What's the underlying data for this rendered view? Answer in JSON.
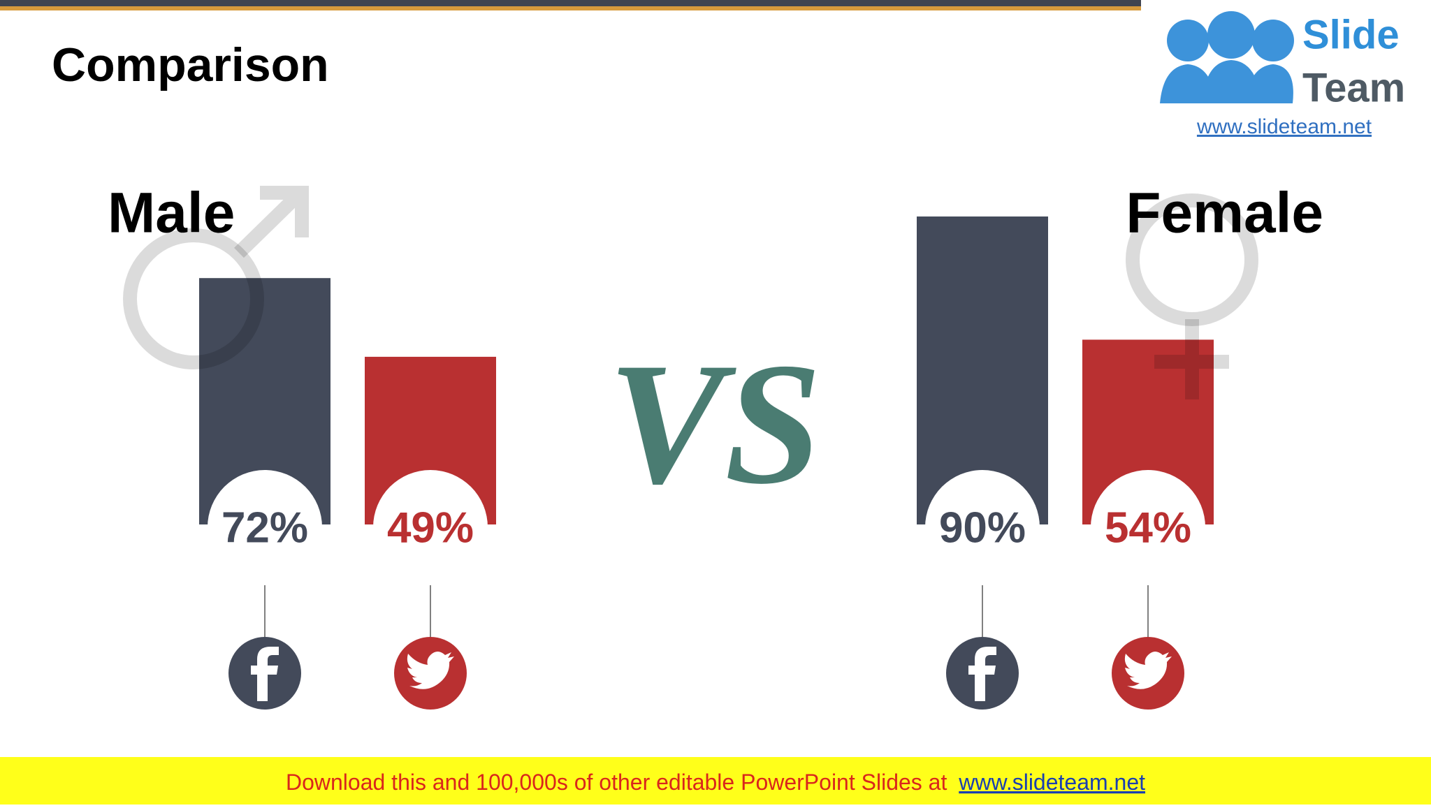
{
  "header": {
    "title": "Comparison"
  },
  "logo": {
    "line1": "Slide",
    "line2": "Team",
    "url": "www.slideteam.net"
  },
  "vs": "VS",
  "chart_data": [
    {
      "type": "bar",
      "title": "Male",
      "values": [
        72,
        49
      ],
      "value_labels": [
        "72%",
        "49%"
      ],
      "colors": [
        "#434a5a",
        "#b93031"
      ],
      "ylim": [
        0,
        100
      ]
    },
    {
      "type": "bar",
      "title": "Female",
      "values": [
        90,
        54
      ],
      "value_labels": [
        "90%",
        "54%"
      ],
      "colors": [
        "#434a5a",
        "#b93031"
      ],
      "ylim": [
        0,
        100
      ]
    }
  ],
  "footer": {
    "text": "Download this and 100,000s of other editable PowerPoint Slides at",
    "link": "www.slideteam.net"
  }
}
